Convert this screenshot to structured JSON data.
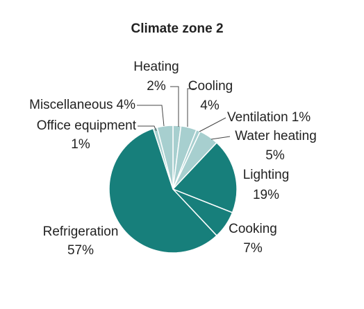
{
  "chart_data": {
    "type": "pie",
    "title": "Climate zone 2",
    "categories": [
      "Heating",
      "Cooling",
      "Ventilation",
      "Water heating",
      "Lighting",
      "Cooking",
      "Refrigeration",
      "Office equipment",
      "Miscellaneous"
    ],
    "values": [
      2,
      4,
      1,
      5,
      19,
      7,
      57,
      1,
      4
    ],
    "value_labels": [
      "2%",
      "4%",
      "1%",
      "5%",
      "19%",
      "7%",
      "57%",
      "1%",
      "4%"
    ],
    "colors": [
      "#a7cfcf",
      "#a7cfcf",
      "#a7cfcf",
      "#a7cfcf",
      "#177f7b",
      "#177f7b",
      "#177f7b",
      "#a7cfcf",
      "#a7cfcf"
    ]
  }
}
